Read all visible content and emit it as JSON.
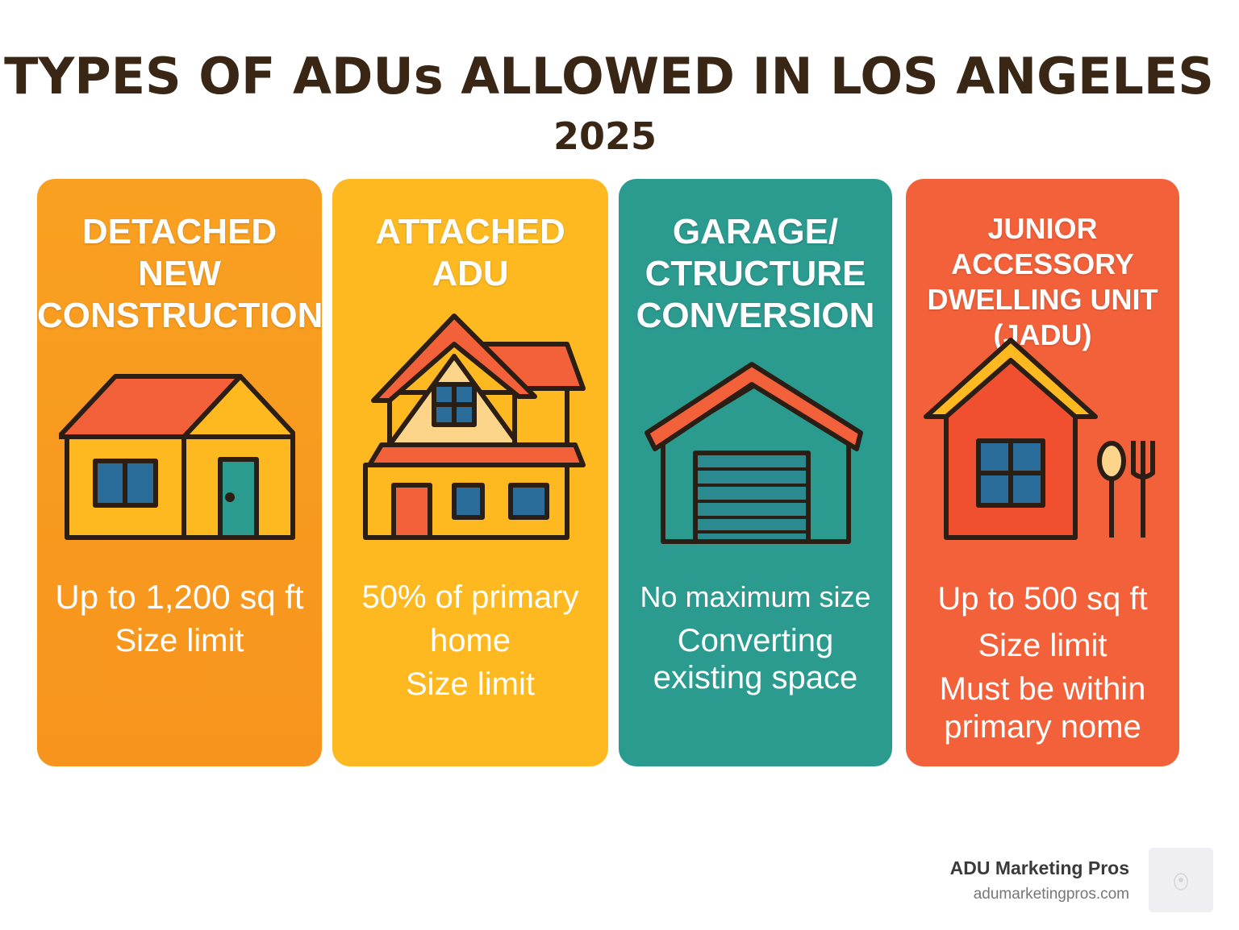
{
  "title": "TYPES OF ADUs ALLOWED IN LOS ANGELES",
  "year": "2025",
  "cards": [
    {
      "title": [
        "DETACHED",
        "NEW",
        "CONSTRUCTION"
      ],
      "desc": [
        "Up to 1,200 sq ft",
        "Size limit"
      ],
      "color": "#F89A1E",
      "icon": "detached-house-icon"
    },
    {
      "title": [
        "ATTACHED",
        "ADU"
      ],
      "desc": [
        "50% of primary",
        "home",
        "Size limit"
      ],
      "color": "#FDB91F",
      "icon": "attached-house-icon"
    },
    {
      "title": [
        "GARAGE/",
        "CTRUCTURE",
        "CONVERSION"
      ],
      "desc": [
        "No maximum size",
        "Converting",
        "existing space"
      ],
      "color": "#2B9A8F",
      "icon": "garage-icon"
    },
    {
      "title": [
        "JUNIOR ACCESSORY",
        "DWELLING UNIT",
        "(JADU)"
      ],
      "desc": [
        "Up to 500 sq ft",
        "Size limit",
        "Must be within",
        "primary nome"
      ],
      "color": "#F2613A",
      "icon": "house-with-utensils-icon"
    }
  ],
  "brand": {
    "name": "ADU Marketing Pros",
    "url": "adumarketingpros.com"
  }
}
